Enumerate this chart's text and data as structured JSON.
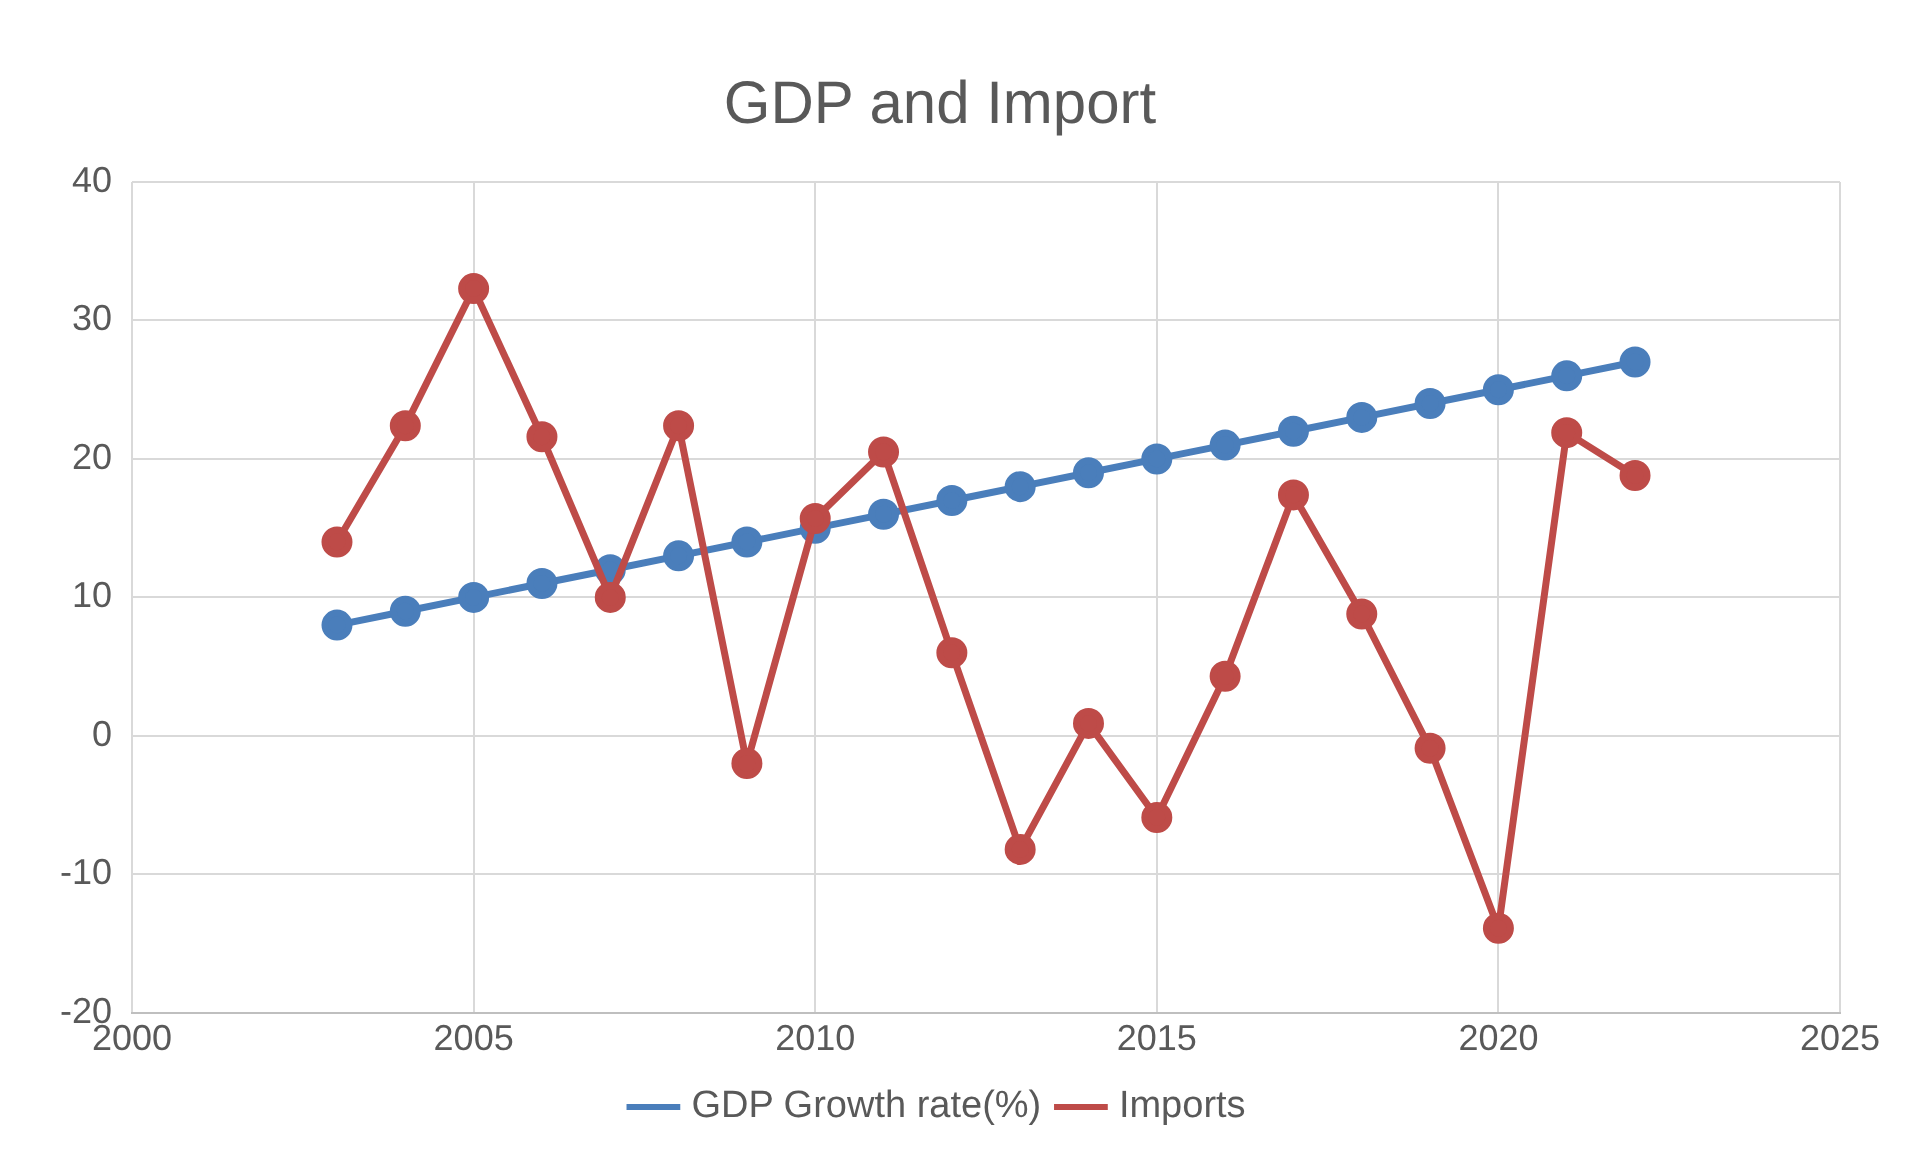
{
  "chart_data": {
    "type": "line",
    "title": "GDP and Import",
    "x": [
      2003,
      2004,
      2005,
      2006,
      2007,
      2008,
      2009,
      2010,
      2011,
      2012,
      2013,
      2014,
      2015,
      2016,
      2017,
      2018,
      2019,
      2020,
      2021,
      2022
    ],
    "series": [
      {
        "name": "GDP Growth rate(%)",
        "color": "#4a7ebb",
        "values": [
          8,
          9,
          10,
          11,
          12,
          13,
          14,
          15,
          16,
          17,
          18,
          19,
          20,
          21,
          22,
          23,
          24,
          25,
          26,
          27
        ]
      },
      {
        "name": "Imports",
        "color": "#be4b48",
        "values": [
          14,
          22.4,
          32.3,
          21.6,
          10,
          22.4,
          -2,
          15.7,
          20.5,
          6,
          -8.2,
          0.9,
          -5.9,
          4.3,
          17.4,
          8.8,
          -0.9,
          -13.9,
          21.9,
          18.8
        ]
      }
    ],
    "xlim": [
      2000,
      2025
    ],
    "xticks": [
      2000,
      2005,
      2010,
      2015,
      2020,
      2025
    ],
    "ylim": [
      -20,
      40
    ],
    "yticks": [
      -20,
      -10,
      0,
      10,
      20,
      30,
      40
    ],
    "grid": true,
    "legend": "bottom",
    "marker": "circle",
    "line_style": "solid"
  }
}
